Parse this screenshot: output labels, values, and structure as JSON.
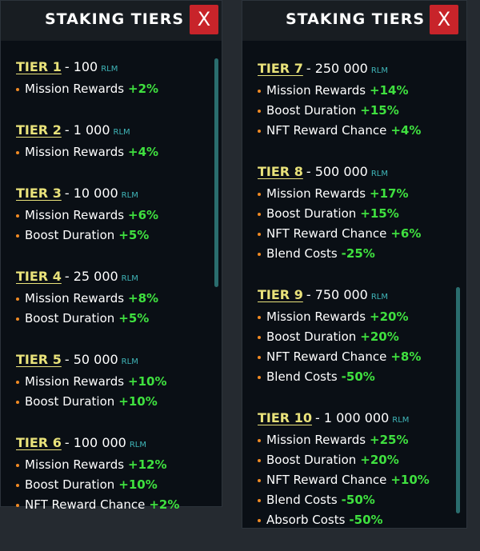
{
  "panels": [
    {
      "title": "STAKING TIERS",
      "close": "X",
      "tiers": [
        {
          "name": "TIER 1",
          "amount": "- 100",
          "unit": "RLM",
          "perks": [
            {
              "label": "Mission Rewards",
              "bonus": "+2%"
            }
          ]
        },
        {
          "name": "TIER 2",
          "amount": "- 1 000",
          "unit": "RLM",
          "perks": [
            {
              "label": "Mission Rewards",
              "bonus": "+4%"
            }
          ]
        },
        {
          "name": "TIER 3",
          "amount": "- 10 000",
          "unit": "RLM",
          "perks": [
            {
              "label": "Mission Rewards",
              "bonus": "+6%"
            },
            {
              "label": "Boost Duration",
              "bonus": "+5%"
            }
          ]
        },
        {
          "name": "TIER 4",
          "amount": "- 25 000",
          "unit": "RLM",
          "perks": [
            {
              "label": "Mission Rewards",
              "bonus": "+8%"
            },
            {
              "label": "Boost Duration",
              "bonus": "+5%"
            }
          ]
        },
        {
          "name": "TIER 5",
          "amount": "- 50 000",
          "unit": "RLM",
          "perks": [
            {
              "label": "Mission Rewards",
              "bonus": "+10%"
            },
            {
              "label": "Boost Duration",
              "bonus": "+10%"
            }
          ]
        },
        {
          "name": "TIER 6",
          "amount": "- 100 000",
          "unit": "RLM",
          "perks": [
            {
              "label": "Mission Rewards",
              "bonus": "+12%"
            },
            {
              "label": "Boost Duration",
              "bonus": "+10%"
            },
            {
              "label": "NFT Reward Chance",
              "bonus": "+2%"
            }
          ]
        }
      ]
    },
    {
      "title": "STAKING TIERS",
      "close": "X",
      "tiers": [
        {
          "name": "TIER 7",
          "amount": "- 250 000",
          "unit": "RLM",
          "perks": [
            {
              "label": "Mission Rewards",
              "bonus": "+14%"
            },
            {
              "label": "Boost Duration",
              "bonus": "+15%"
            },
            {
              "label": "NFT Reward Chance",
              "bonus": "+4%"
            }
          ]
        },
        {
          "name": "TIER 8",
          "amount": "- 500 000",
          "unit": "RLM",
          "perks": [
            {
              "label": "Mission Rewards",
              "bonus": "+17%"
            },
            {
              "label": "Boost Duration",
              "bonus": "+15%"
            },
            {
              "label": "NFT Reward Chance",
              "bonus": "+6%"
            },
            {
              "label": "Blend Costs",
              "bonus": "-25%"
            }
          ]
        },
        {
          "name": "TIER 9",
          "amount": "- 750 000",
          "unit": "RLM",
          "perks": [
            {
              "label": "Mission Rewards",
              "bonus": "+20%"
            },
            {
              "label": "Boost Duration",
              "bonus": "+20%"
            },
            {
              "label": "NFT Reward Chance",
              "bonus": "+8%"
            },
            {
              "label": "Blend Costs",
              "bonus": "-50%"
            }
          ]
        },
        {
          "name": "TIER 10",
          "amount": "- 1 000 000",
          "unit": "RLM",
          "perks": [
            {
              "label": "Mission Rewards",
              "bonus": "+25%"
            },
            {
              "label": "Boost Duration",
              "bonus": "+20%"
            },
            {
              "label": "NFT Reward Chance",
              "bonus": "+10%"
            },
            {
              "label": "Blend Costs",
              "bonus": "-50%"
            },
            {
              "label": "Absorb Costs",
              "bonus": "-50%"
            }
          ]
        }
      ]
    }
  ]
}
